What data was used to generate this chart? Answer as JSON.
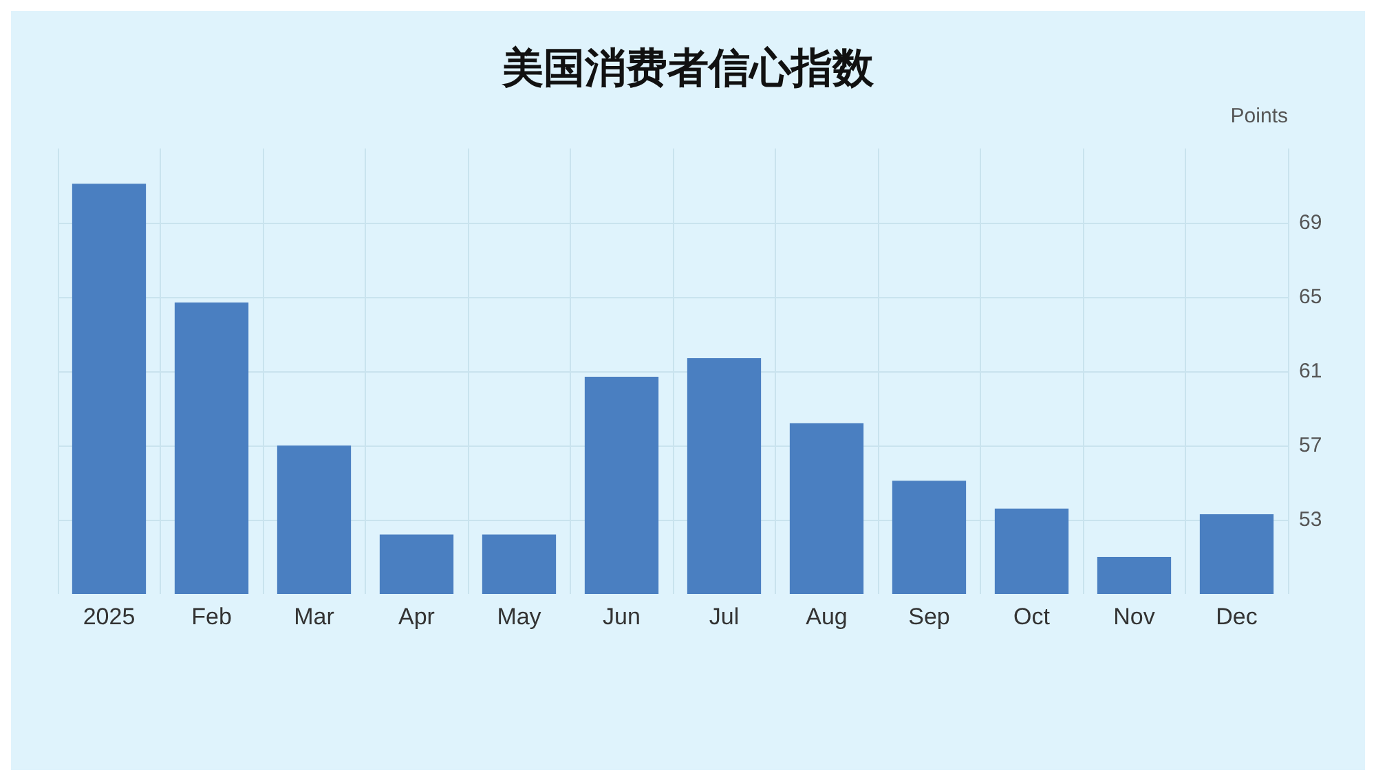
{
  "chart_data": {
    "type": "bar",
    "title": "美国消费者信心指数",
    "ylabel": "Points",
    "categories": [
      "2025",
      "Feb",
      "Mar",
      "Apr",
      "May",
      "Jun",
      "Jul",
      "Aug",
      "Sep",
      "Oct",
      "Nov",
      "Dec"
    ],
    "values": [
      71.1,
      64.7,
      57.0,
      52.2,
      52.2,
      60.7,
      61.7,
      58.2,
      55.1,
      53.6,
      51.0,
      53.3
    ],
    "color": "#4a7fc1",
    "ylim": [
      49,
      73
    ],
    "yticks": [
      53,
      57,
      61,
      65,
      69
    ],
    "grid": true
  }
}
